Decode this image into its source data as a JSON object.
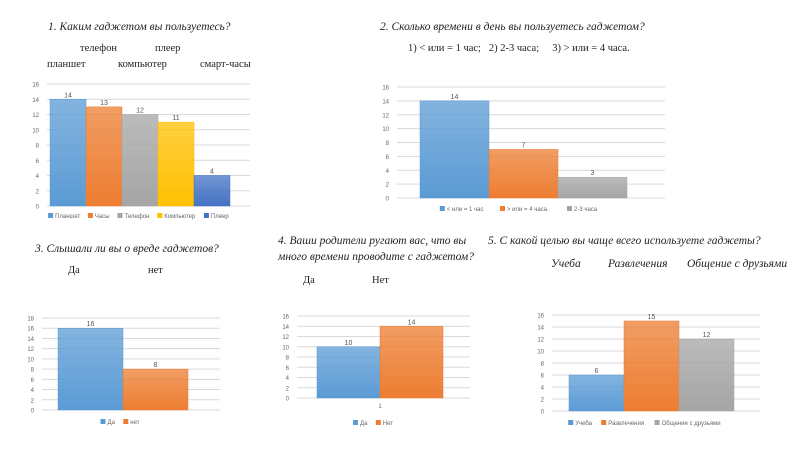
{
  "questions": {
    "q1": {
      "title": "1. Каким гаджетом вы пользуетесь?",
      "options_row1": [
        "телефон",
        "плеер"
      ],
      "options_row2": [
        "планшет",
        "компьютер",
        "смарт-часы"
      ]
    },
    "q2": {
      "title": "2. Сколько времени в день вы пользуетесь гаджетом?",
      "options": "1) < или = 1 час;   2) 2-3 часа;     3) > или = 4 часа."
    },
    "q3": {
      "title": "3. Слышали ли вы о вреде гаджетов?",
      "options": [
        "Да",
        "нет"
      ]
    },
    "q4": {
      "title_line1": "4. Ваши родители ругают вас, что вы",
      "title_line2": "много времени проводите с  гаджетом?",
      "options": [
        "Да",
        "Нет"
      ]
    },
    "q5": {
      "title": "5. С какой целью вы чаще всего используете гаджеты?",
      "options": [
        "Учеба",
        "Развлечения",
        "Общение с друзьями"
      ]
    }
  },
  "chart_data": [
    {
      "type": "bar",
      "ylim": [
        0,
        16
      ],
      "ystep": 2,
      "grid": true,
      "legend": "bottom",
      "categories": [
        ""
      ],
      "series": [
        {
          "name": "Планшет",
          "values": [
            14
          ],
          "color": "#5b9bd5"
        },
        {
          "name": "Часы",
          "values": [
            13
          ],
          "color": "#ed7d31"
        },
        {
          "name": "Телефон",
          "values": [
            12
          ],
          "color": "#a5a5a5"
        },
        {
          "name": "Компьютер",
          "values": [
            11
          ],
          "color": "#ffc000"
        },
        {
          "name": "Плеер",
          "values": [
            4
          ],
          "color": "#4472c4"
        }
      ]
    },
    {
      "type": "bar",
      "ylim": [
        0,
        16
      ],
      "ystep": 2,
      "grid": true,
      "legend": "bottom",
      "categories": [
        ""
      ],
      "series": [
        {
          "name": "< или = 1 час",
          "values": [
            14
          ],
          "color": "#5b9bd5"
        },
        {
          "name": "> или = 4 часа.",
          "values": [
            7
          ],
          "color": "#ed7d31"
        },
        {
          "name": "2-3 часа",
          "values": [
            3
          ],
          "color": "#a5a5a5"
        }
      ]
    },
    {
      "type": "bar",
      "ylim": [
        0,
        18
      ],
      "ystep": 2,
      "grid": true,
      "legend": "bottom",
      "categories": [
        ""
      ],
      "series": [
        {
          "name": "Да",
          "values": [
            16
          ],
          "color": "#5b9bd5"
        },
        {
          "name": "нет",
          "values": [
            8
          ],
          "color": "#ed7d31"
        }
      ]
    },
    {
      "type": "bar",
      "ylim": [
        0,
        16
      ],
      "ystep": 2,
      "grid": true,
      "legend": "bottom",
      "categories": [
        "1"
      ],
      "series": [
        {
          "name": "Да",
          "values": [
            10
          ],
          "color": "#5b9bd5"
        },
        {
          "name": "Нет",
          "values": [
            14
          ],
          "color": "#ed7d31"
        }
      ]
    },
    {
      "type": "bar",
      "ylim": [
        0,
        16
      ],
      "ystep": 2,
      "grid": true,
      "legend": "bottom",
      "categories": [
        ""
      ],
      "series": [
        {
          "name": "Учеба",
          "values": [
            6
          ],
          "color": "#5b9bd5"
        },
        {
          "name": "Развлечения",
          "values": [
            15
          ],
          "color": "#ed7d31"
        },
        {
          "name": "Общение с друзьями",
          "values": [
            12
          ],
          "color": "#a5a5a5"
        }
      ]
    }
  ]
}
